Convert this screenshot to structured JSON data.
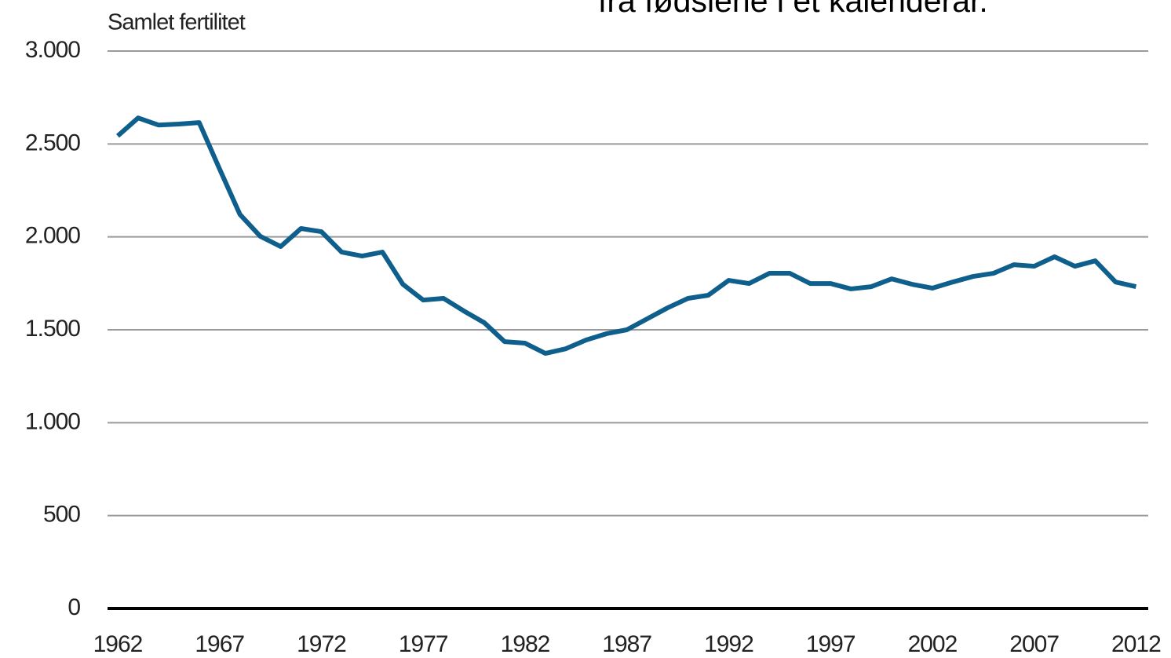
{
  "chart_data": {
    "type": "line",
    "y_axis_label": "Samlet fertilitet",
    "annotation": "fra fødslene i et kalenderår.",
    "x": [
      1962,
      1963,
      1964,
      1965,
      1966,
      1967,
      1968,
      1969,
      1970,
      1971,
      1972,
      1973,
      1974,
      1975,
      1976,
      1977,
      1978,
      1979,
      1980,
      1981,
      1982,
      1983,
      1984,
      1985,
      1986,
      1987,
      1988,
      1989,
      1990,
      1991,
      1992,
      1993,
      1994,
      1995,
      1996,
      1997,
      1998,
      1999,
      2000,
      2001,
      2002,
      2003,
      2004,
      2005,
      2006,
      2007,
      2008,
      2009,
      2010,
      2011,
      2012
    ],
    "series": [
      {
        "color": "#0f5f8c",
        "values": [
          2543,
          2640,
          2602,
          2607,
          2615,
          2366,
          2121,
          2003,
          1948,
          2045,
          2028,
          1918,
          1897,
          1918,
          1745,
          1660,
          1669,
          1601,
          1538,
          1436,
          1428,
          1373,
          1398,
          1445,
          1479,
          1500,
          1559,
          1618,
          1669,
          1686,
          1766,
          1749,
          1804,
          1804,
          1749,
          1749,
          1720,
          1732,
          1774,
          1745,
          1724,
          1757,
          1787,
          1804,
          1850,
          1842,
          1893,
          1842,
          1871,
          1757,
          1732
        ]
      }
    ],
    "xlim": [
      1961.5,
      2012.6
    ],
    "xticks": [
      1962,
      1967,
      1972,
      1977,
      1982,
      1987,
      1992,
      1997,
      2002,
      2007,
      2012
    ],
    "ylim": [
      0,
      3000
    ],
    "yticks": [
      0,
      500,
      {
        "value": 1000,
        "label": "1.000"
      },
      {
        "value": 1500,
        "label": "1.500"
      },
      {
        "value": 2000,
        "label": "2.000"
      },
      {
        "value": 2500,
        "label": "2.500"
      },
      {
        "value": 3000,
        "label": "3.000"
      }
    ],
    "grid": true
  }
}
